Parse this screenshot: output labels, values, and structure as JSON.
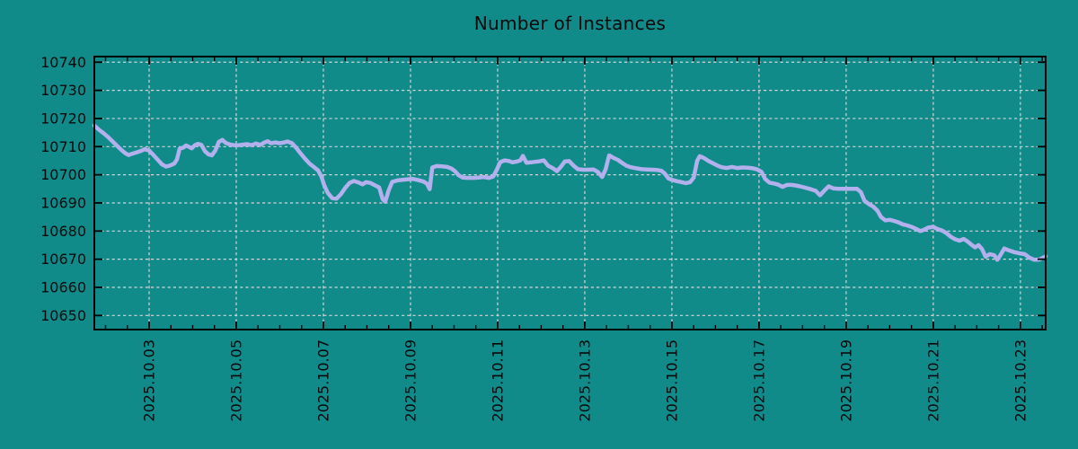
{
  "title": "Number of Instances",
  "colors": {
    "background": "#118a8a",
    "line": "#b2b0ed",
    "grid": "#d2d6d6",
    "frame": "#000000",
    "text": "#0a0a0a"
  },
  "chart_data": {
    "type": "line",
    "title": "Number of Instances",
    "series_name": "instances",
    "x_unit": "day of October 2025 (fractional)",
    "xlim": [
      1.742,
      23.58
    ],
    "ylim": [
      10645,
      10742
    ],
    "grid": true,
    "legend": "none",
    "yticks": [
      {
        "v": 10650,
        "label": "10650"
      },
      {
        "v": 10660,
        "label": "10660"
      },
      {
        "v": 10670,
        "label": "10670"
      },
      {
        "v": 10680,
        "label": "10680"
      },
      {
        "v": 10690,
        "label": "10690"
      },
      {
        "v": 10700,
        "label": "10700"
      },
      {
        "v": 10710,
        "label": "10710"
      },
      {
        "v": 10720,
        "label": "10720"
      },
      {
        "v": 10730,
        "label": "10730"
      },
      {
        "v": 10740,
        "label": "10740"
      }
    ],
    "xticks_major": [
      {
        "t": 3,
        "label": "2025.10.03"
      },
      {
        "t": 5,
        "label": "2025.10.05"
      },
      {
        "t": 7,
        "label": "2025.10.07"
      },
      {
        "t": 9,
        "label": "2025.10.09"
      },
      {
        "t": 11,
        "label": "2025.10.11"
      },
      {
        "t": 13,
        "label": "2025.10.13"
      },
      {
        "t": 15,
        "label": "2025.10.15"
      },
      {
        "t": 17,
        "label": "2025.10.17"
      },
      {
        "t": 19,
        "label": "2025.10.19"
      },
      {
        "t": 21,
        "label": "2025.10.21"
      },
      {
        "t": 23,
        "label": "2025.10.23"
      }
    ],
    "xtick_minor_step": 0.5,
    "points": [
      [
        1.74,
        10717.5
      ],
      [
        1.85,
        10716.0
      ],
      [
        1.95,
        10714.8
      ],
      [
        2.05,
        10713.5
      ],
      [
        2.15,
        10712.0
      ],
      [
        2.25,
        10710.5
      ],
      [
        2.35,
        10709.0
      ],
      [
        2.45,
        10707.7
      ],
      [
        2.53,
        10707.0
      ],
      [
        2.6,
        10707.4
      ],
      [
        2.7,
        10707.9
      ],
      [
        2.8,
        10708.4
      ],
      [
        2.9,
        10709.1
      ],
      [
        3.0,
        10708.6
      ],
      [
        3.1,
        10707.0
      ],
      [
        3.2,
        10705.3
      ],
      [
        3.3,
        10703.6
      ],
      [
        3.39,
        10702.9
      ],
      [
        3.48,
        10703.3
      ],
      [
        3.58,
        10704.0
      ],
      [
        3.64,
        10705.5
      ],
      [
        3.7,
        10709.3
      ],
      [
        3.78,
        10709.6
      ],
      [
        3.85,
        10710.4
      ],
      [
        3.92,
        10709.9
      ],
      [
        3.98,
        10709.4
      ],
      [
        4.05,
        10710.5
      ],
      [
        4.12,
        10711.0
      ],
      [
        4.2,
        10710.6
      ],
      [
        4.28,
        10708.4
      ],
      [
        4.36,
        10707.3
      ],
      [
        4.44,
        10706.9
      ],
      [
        4.52,
        10708.6
      ],
      [
        4.6,
        10711.7
      ],
      [
        4.68,
        10712.4
      ],
      [
        4.76,
        10711.3
      ],
      [
        4.85,
        10710.8
      ],
      [
        4.95,
        10710.5
      ],
      [
        5.05,
        10710.5
      ],
      [
        5.15,
        10710.7
      ],
      [
        5.25,
        10710.9
      ],
      [
        5.35,
        10710.5
      ],
      [
        5.45,
        10711.1
      ],
      [
        5.55,
        10710.6
      ],
      [
        5.65,
        10711.5
      ],
      [
        5.72,
        10711.9
      ],
      [
        5.8,
        10711.2
      ],
      [
        5.9,
        10711.5
      ],
      [
        6.0,
        10711.2
      ],
      [
        6.1,
        10711.5
      ],
      [
        6.18,
        10711.8
      ],
      [
        6.28,
        10711.2
      ],
      [
        6.38,
        10709.5
      ],
      [
        6.48,
        10707.5
      ],
      [
        6.58,
        10705.7
      ],
      [
        6.68,
        10704.0
      ],
      [
        6.78,
        10702.8
      ],
      [
        6.88,
        10701.5
      ],
      [
        6.95,
        10699.5
      ],
      [
        7.02,
        10696.3
      ],
      [
        7.1,
        10693.6
      ],
      [
        7.2,
        10691.7
      ],
      [
        7.3,
        10691.5
      ],
      [
        7.4,
        10693.1
      ],
      [
        7.5,
        10695.3
      ],
      [
        7.6,
        10697.1
      ],
      [
        7.7,
        10697.8
      ],
      [
        7.8,
        10697.3
      ],
      [
        7.9,
        10696.6
      ],
      [
        7.98,
        10697.4
      ],
      [
        8.08,
        10697.1
      ],
      [
        8.18,
        10696.3
      ],
      [
        8.28,
        10695.5
      ],
      [
        8.36,
        10691.4
      ],
      [
        8.42,
        10690.4
      ],
      [
        8.5,
        10694.5
      ],
      [
        8.58,
        10697.5
      ],
      [
        8.7,
        10698.0
      ],
      [
        8.82,
        10698.2
      ],
      [
        8.94,
        10698.4
      ],
      [
        9.06,
        10698.5
      ],
      [
        9.18,
        10698.1
      ],
      [
        9.3,
        10697.6
      ],
      [
        9.38,
        10696.8
      ],
      [
        9.44,
        10694.9
      ],
      [
        9.5,
        10702.6
      ],
      [
        9.6,
        10703.1
      ],
      [
        9.72,
        10703.0
      ],
      [
        9.84,
        10702.8
      ],
      [
        9.94,
        10702.2
      ],
      [
        10.02,
        10701.3
      ],
      [
        10.1,
        10699.9
      ],
      [
        10.2,
        10699.0
      ],
      [
        10.32,
        10698.9
      ],
      [
        10.44,
        10698.9
      ],
      [
        10.56,
        10699.0
      ],
      [
        10.68,
        10699.2
      ],
      [
        10.8,
        10698.9
      ],
      [
        10.9,
        10699.4
      ],
      [
        10.98,
        10701.8
      ],
      [
        11.06,
        10704.5
      ],
      [
        11.16,
        10705.1
      ],
      [
        11.26,
        10704.9
      ],
      [
        11.34,
        10704.4
      ],
      [
        11.44,
        10704.7
      ],
      [
        11.52,
        10705.1
      ],
      [
        11.58,
        10706.7
      ],
      [
        11.66,
        10704.3
      ],
      [
        11.76,
        10704.4
      ],
      [
        11.86,
        10704.6
      ],
      [
        11.96,
        10704.8
      ],
      [
        12.06,
        10705.1
      ],
      [
        12.16,
        10703.2
      ],
      [
        12.26,
        10702.4
      ],
      [
        12.36,
        10701.3
      ],
      [
        12.46,
        10703.0
      ],
      [
        12.54,
        10704.7
      ],
      [
        12.64,
        10704.9
      ],
      [
        12.74,
        10703.3
      ],
      [
        12.84,
        10702.0
      ],
      [
        12.95,
        10701.8
      ],
      [
        13.08,
        10701.8
      ],
      [
        13.2,
        10701.9
      ],
      [
        13.3,
        10701.0
      ],
      [
        13.4,
        10699.2
      ],
      [
        13.48,
        10702.0
      ],
      [
        13.56,
        10706.9
      ],
      [
        13.66,
        10706.0
      ],
      [
        13.76,
        10705.3
      ],
      [
        13.86,
        10704.2
      ],
      [
        13.96,
        10703.2
      ],
      [
        14.06,
        10702.7
      ],
      [
        14.18,
        10702.3
      ],
      [
        14.3,
        10702.0
      ],
      [
        14.42,
        10701.9
      ],
      [
        14.54,
        10701.8
      ],
      [
        14.66,
        10701.7
      ],
      [
        14.76,
        10701.4
      ],
      [
        14.84,
        10700.4
      ],
      [
        14.92,
        10698.7
      ],
      [
        15.02,
        10698.1
      ],
      [
        15.12,
        10697.7
      ],
      [
        15.22,
        10697.4
      ],
      [
        15.32,
        10697.0
      ],
      [
        15.42,
        10697.4
      ],
      [
        15.5,
        10699.0
      ],
      [
        15.58,
        10705.0
      ],
      [
        15.64,
        10706.6
      ],
      [
        15.74,
        10705.9
      ],
      [
        15.84,
        10704.9
      ],
      [
        15.94,
        10704.1
      ],
      [
        16.04,
        10703.3
      ],
      [
        16.14,
        10702.7
      ],
      [
        16.26,
        10702.4
      ],
      [
        16.38,
        10702.8
      ],
      [
        16.5,
        10702.4
      ],
      [
        16.62,
        10702.6
      ],
      [
        16.74,
        10702.5
      ],
      [
        16.86,
        10702.3
      ],
      [
        16.96,
        10701.9
      ],
      [
        17.06,
        10701.0
      ],
      [
        17.14,
        10698.5
      ],
      [
        17.24,
        10697.2
      ],
      [
        17.34,
        10696.9
      ],
      [
        17.44,
        10696.5
      ],
      [
        17.54,
        10695.7
      ],
      [
        17.64,
        10696.4
      ],
      [
        17.74,
        10696.4
      ],
      [
        17.84,
        10696.2
      ],
      [
        17.94,
        10695.9
      ],
      [
        18.06,
        10695.4
      ],
      [
        18.18,
        10694.9
      ],
      [
        18.3,
        10694.3
      ],
      [
        18.4,
        10692.7
      ],
      [
        18.5,
        10694.4
      ],
      [
        18.6,
        10695.9
      ],
      [
        18.7,
        10695.2
      ],
      [
        18.82,
        10695.0
      ],
      [
        18.95,
        10695.0
      ],
      [
        19.1,
        10695.0
      ],
      [
        19.25,
        10695.0
      ],
      [
        19.34,
        10693.8
      ],
      [
        19.42,
        10690.8
      ],
      [
        19.52,
        10689.6
      ],
      [
        19.62,
        10688.7
      ],
      [
        19.72,
        10687.2
      ],
      [
        19.8,
        10685.0
      ],
      [
        19.9,
        10683.8
      ],
      [
        20.0,
        10684.0
      ],
      [
        20.1,
        10683.6
      ],
      [
        20.2,
        10683.1
      ],
      [
        20.3,
        10682.4
      ],
      [
        20.4,
        10682.0
      ],
      [
        20.5,
        10681.5
      ],
      [
        20.6,
        10680.8
      ],
      [
        20.7,
        10680.0
      ],
      [
        20.78,
        10680.4
      ],
      [
        20.88,
        10681.2
      ],
      [
        21.0,
        10681.5
      ],
      [
        21.1,
        10680.7
      ],
      [
        21.2,
        10680.2
      ],
      [
        21.3,
        10679.3
      ],
      [
        21.4,
        10678.0
      ],
      [
        21.5,
        10677.1
      ],
      [
        21.6,
        10676.6
      ],
      [
        21.7,
        10677.2
      ],
      [
        21.78,
        10676.4
      ],
      [
        21.88,
        10675.1
      ],
      [
        21.96,
        10674.2
      ],
      [
        22.04,
        10675.0
      ],
      [
        22.12,
        10673.6
      ],
      [
        22.2,
        10670.9
      ],
      [
        22.3,
        10671.8
      ],
      [
        22.4,
        10671.4
      ],
      [
        22.47,
        10669.8
      ],
      [
        22.56,
        10671.9
      ],
      [
        22.63,
        10673.8
      ],
      [
        22.74,
        10673.1
      ],
      [
        22.86,
        10672.5
      ],
      [
        22.98,
        10672.1
      ],
      [
        23.1,
        10671.8
      ],
      [
        23.2,
        10670.6
      ],
      [
        23.32,
        10669.8
      ],
      [
        23.44,
        10669.9
      ],
      [
        23.58,
        10671.0
      ]
    ]
  }
}
